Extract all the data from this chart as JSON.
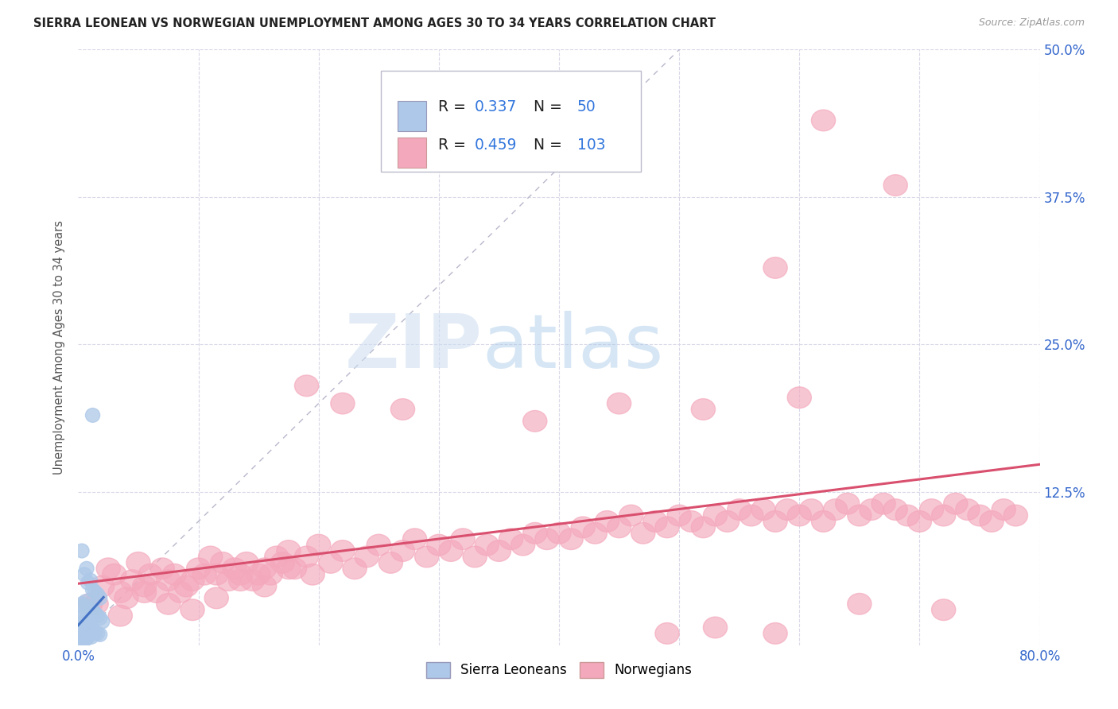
{
  "title": "SIERRA LEONEAN VS NORWEGIAN UNEMPLOYMENT AMONG AGES 30 TO 34 YEARS CORRELATION CHART",
  "source": "Source: ZipAtlas.com",
  "ylabel": "Unemployment Among Ages 30 to 34 years",
  "xlim": [
    0.0,
    0.8
  ],
  "ylim": [
    -0.005,
    0.5
  ],
  "legend_R1": "0.337",
  "legend_N1": "50",
  "legend_R2": "0.459",
  "legend_N2": "103",
  "sierra_color": "#adc8e8",
  "norwegian_color": "#f4a8bc",
  "sierra_trend_color": "#4472c4",
  "norwegian_trend_color": "#d94f6e",
  "ref_line_color": "#b8b8cc",
  "watermark_zip": "ZIP",
  "watermark_atlas": "atlas",
  "background_color": "#ffffff",
  "grid_color": "#d8d8e8"
}
